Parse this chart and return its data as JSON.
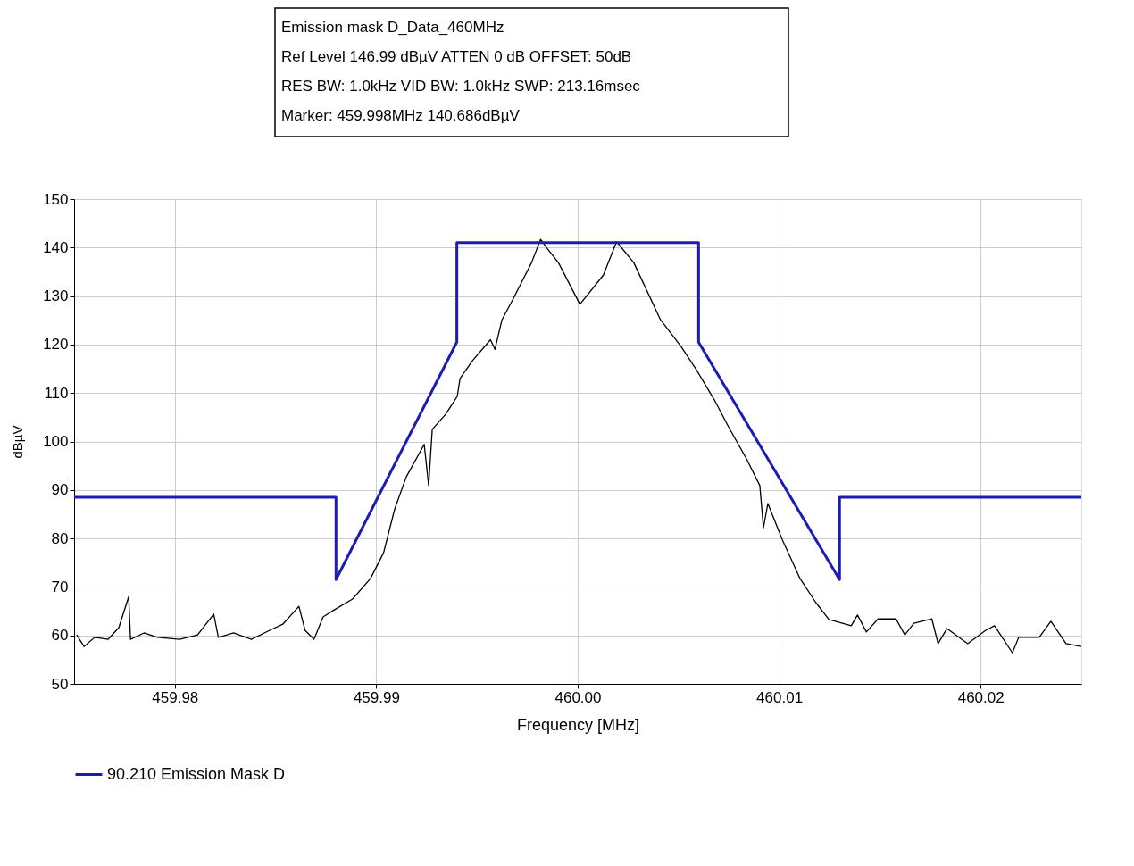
{
  "chart_data": {
    "type": "line",
    "xlabel": "Frequency [MHz]",
    "ylabel": "dBµV",
    "annotations": [
      "Emission mask D_Data_460MHz",
      "Ref Level 146.99 dBµV    ATTEN 0 dB    OFFSET: 50dB",
      "RES BW: 1.0kHz  VID BW: 1.0kHz  SWP: 213.16msec",
      "Marker: 459.998MHz  140.686dBµV"
    ],
    "xlim": [
      459.975,
      460.025
    ],
    "xticks": [
      459.98,
      459.99,
      {
        "value": 460,
        "label": "460.00"
      },
      460.01,
      460.02
    ],
    "ylim": [
      50,
      150
    ],
    "yticks": [
      50,
      60,
      70,
      80,
      90,
      100,
      110,
      120,
      130,
      140,
      150
    ],
    "grid": true,
    "legend": "bottom",
    "series": [
      {
        "color": "#000000",
        "x": [
          459.97513,
          459.97549,
          459.97602,
          459.97669,
          459.97722,
          459.97771,
          459.9778,
          459.97847,
          459.97913,
          459.98024,
          459.98113,
          459.98193,
          459.98216,
          459.98291,
          459.9838,
          459.98469,
          459.98536,
          459.98616,
          459.98647,
          459.98691,
          459.98736,
          459.98793,
          459.98882,
          459.98971,
          459.99036,
          459.99091,
          459.99149,
          459.99238,
          459.9926,
          459.99278,
          459.99344,
          459.99402,
          459.99416,
          459.99478,
          459.99567,
          459.99589,
          459.99624,
          459.99682,
          459.99771,
          459.99816,
          459.99847,
          459.99904,
          460.00011,
          460.00127,
          460.00193,
          460.00278,
          460.00411,
          460.00513,
          460.00589,
          460.00678,
          460.00749,
          460.00838,
          460.00904,
          460.00922,
          460.00944,
          460.01016,
          460.01104,
          460.0118,
          460.01247,
          460.01358,
          460.01389,
          460.01433,
          460.01491,
          460.0158,
          460.01624,
          460.01669,
          460.01758,
          460.01789,
          460.01833,
          460.01936,
          460.02024,
          460.02069,
          460.02158,
          460.02189,
          460.02291,
          460.02349,
          460.02424,
          460.025
        ],
        "values": [
          60.1,
          57.7,
          59.6,
          59.2,
          61.6,
          68.0,
          59.2,
          60.5,
          59.6,
          59.2,
          60.1,
          64.4,
          59.6,
          60.5,
          59.2,
          61.0,
          62.3,
          66.0,
          61.0,
          59.2,
          63.8,
          65.3,
          67.5,
          71.7,
          77,
          86,
          92.7,
          99.4,
          90.9,
          102.5,
          105.6,
          109.3,
          113,
          116.7,
          121,
          119,
          125.1,
          129.6,
          136.9,
          141.7,
          139.9,
          136.9,
          128.3,
          134.3,
          141.2,
          136.9,
          125.1,
          119.6,
          114.8,
          108.6,
          103,
          96.4,
          90.9,
          82.2,
          87.2,
          79.7,
          71.7,
          66.9,
          63.3,
          62,
          64.2,
          60.7,
          63.4,
          63.4,
          60.1,
          62.5,
          63.4,
          58.3,
          61.4,
          58.3,
          61.0,
          62.0,
          56.4,
          59.6,
          59.6,
          62.9,
          58.3,
          57.7
        ]
      },
      {
        "name": "90.210 Emission Mask D",
        "color": "#1c1cb4",
        "x": [
          459.975,
          459.988,
          459.988,
          459.994,
          459.994,
          460.006,
          460.006,
          460.013,
          460.013,
          460.025
        ],
        "values": [
          88.5,
          88.5,
          71.5,
          120.5,
          141,
          141,
          120.5,
          71.5,
          88.5,
          88.5
        ]
      }
    ]
  }
}
